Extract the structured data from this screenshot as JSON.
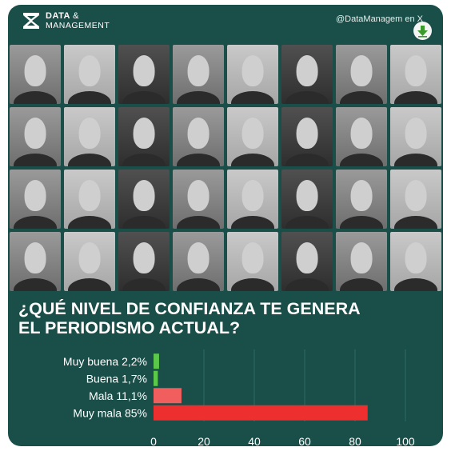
{
  "brand": {
    "name_line1": "DATA",
    "name_amp": "&",
    "name_line2": "MANAGEMENT",
    "logo_icon": "x-logo-icon"
  },
  "handle": "@DataManagem en X",
  "download_icon": "arrow-down-icon",
  "colors": {
    "background": "#1a4f49",
    "positive": "#5bc84a",
    "negative_light": "#f05e5e",
    "negative_dark": "#ee2f2f",
    "text": "#ffffff",
    "gridline": "#2e6b64"
  },
  "photos": {
    "count": 32
  },
  "question": {
    "line1": "¿QUÉ NIVEL DE CONFIANZA TE GENERA",
    "line2": "EL PERIODISMO ACTUAL?"
  },
  "chart_data": {
    "type": "bar",
    "orientation": "horizontal",
    "categories": [
      "Muy buena 2,2%",
      "Buena 1,7%",
      "Mala 11,1%",
      "Muy mala 85%"
    ],
    "values": [
      2.2,
      1.7,
      11.1,
      85
    ],
    "bar_colors": [
      "#5bc84a",
      "#5bc84a",
      "#f05e5e",
      "#ee2f2f"
    ],
    "xlim": [
      0,
      100
    ],
    "xticks": [
      0,
      20,
      40,
      60,
      80,
      100
    ],
    "grid": true,
    "title": "",
    "xlabel": "",
    "ylabel": ""
  }
}
